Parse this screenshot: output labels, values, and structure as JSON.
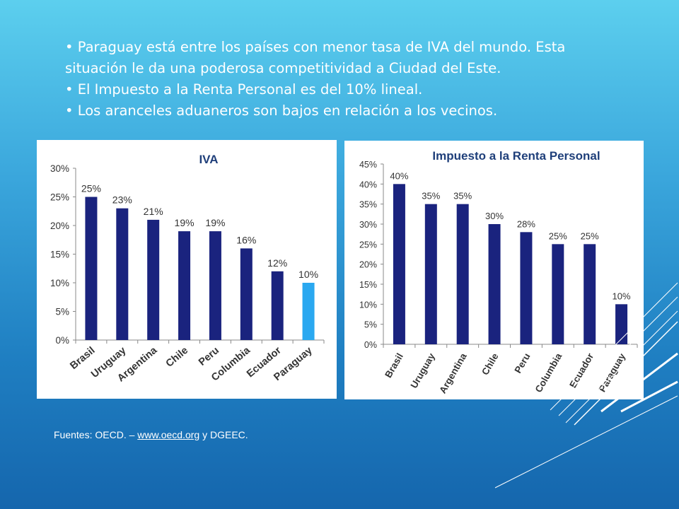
{
  "bullets": [
    "• Paraguay está entre los países con menor tasa de IVA del mundo. Esta situación le da una poderosa competitividad a Ciudad del Este.",
    "• El Impuesto a la Renta Personal es del 10% lineal.",
    "• Los aranceles aduaneros son bajos en relación a los vecinos."
  ],
  "sources": {
    "prefix": "Fuentes: OECD. – ",
    "link": "www.oecd.org",
    "suffix": " y DGEEC."
  },
  "colors": {
    "bar": "#1a237e",
    "highlight": "#2aa8f0",
    "title": "#1f3f7a",
    "axis": "#888888",
    "text": "#333333"
  },
  "chart_data": [
    {
      "type": "bar",
      "title": "IVA",
      "categories": [
        "Brasil",
        "Uruguay",
        "Argentina",
        "Chile",
        "Peru",
        "Columbia",
        "Ecuador",
        "Paraguay"
      ],
      "values": [
        25,
        23,
        21,
        19,
        19,
        16,
        12,
        10
      ],
      "value_labels": [
        "25%",
        "23%",
        "21%",
        "19%",
        "19%",
        "16%",
        "12%",
        "10%"
      ],
      "highlight_index": 7,
      "ylim": [
        0,
        30
      ],
      "yticks": [
        0,
        5,
        10,
        15,
        20,
        25,
        30
      ],
      "ytick_labels": [
        "0%",
        "5%",
        "10%",
        "15%",
        "20%",
        "25%",
        "30%"
      ],
      "grid": false,
      "xlabel": "",
      "ylabel": ""
    },
    {
      "type": "bar",
      "title": "Impuesto a la Renta Personal",
      "categories": [
        "Brasil",
        "Uruguay",
        "Argentina",
        "Chile",
        "Peru",
        "Columbia",
        "Ecuador",
        "Paraguay"
      ],
      "values": [
        40,
        35,
        35,
        30,
        28,
        25,
        25,
        10
      ],
      "value_labels": [
        "40%",
        "35%",
        "35%",
        "30%",
        "28%",
        "25%",
        "25%",
        "10%"
      ],
      "ylim": [
        0,
        45
      ],
      "yticks": [
        0,
        5,
        10,
        15,
        20,
        25,
        30,
        35,
        40,
        45
      ],
      "ytick_labels": [
        "0%",
        "5%",
        "10%",
        "15%",
        "20%",
        "25%",
        "30%",
        "35%",
        "40%",
        "45%"
      ],
      "grid": false,
      "xlabel": "",
      "ylabel": ""
    }
  ]
}
